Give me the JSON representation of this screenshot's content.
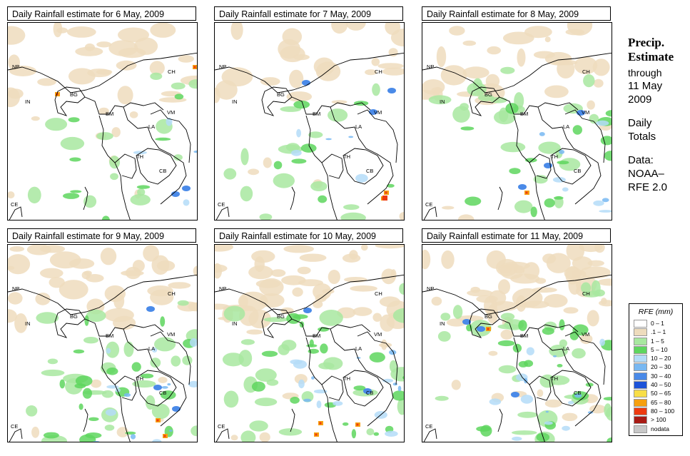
{
  "panels": [
    {
      "title": "Daily Rainfall estimate for  6 May, 2009"
    },
    {
      "title": "Daily Rainfall estimate for  7 May, 2009"
    },
    {
      "title": "Daily Rainfall estimate for  8 May, 2009"
    },
    {
      "title": "Daily Rainfall estimate for  9 May, 2009"
    },
    {
      "title": "Daily Rainfall estimate for  10 May, 2009"
    },
    {
      "title": "Daily Rainfall estimate for  11 May, 2009"
    }
  ],
  "country_labels": [
    "NP",
    "CH",
    "IN",
    "BG",
    "BM",
    "VM",
    "LA",
    "TH",
    "CB",
    "CE"
  ],
  "side": {
    "title1": "Precip.",
    "title2": "Estimate",
    "through": "through",
    "date1": "11 May",
    "date2": "2009",
    "daily1": "Daily",
    "daily2": "Totals",
    "data1": "Data:",
    "data2": "NOAA–",
    "data3": "RFE 2.0"
  },
  "legend": {
    "title": "RFE (mm)",
    "items": [
      {
        "label": "0 – 1",
        "color": "#ffffff"
      },
      {
        "label": ".1 – 1",
        "color": "#eedcbd"
      },
      {
        "label": "1 – 5",
        "color": "#a8e8a0"
      },
      {
        "label": "5 – 10",
        "color": "#5ed65e"
      },
      {
        "label": "10 – 20",
        "color": "#b4dcf8"
      },
      {
        "label": "20 – 30",
        "color": "#78b8f2"
      },
      {
        "label": "30 – 40",
        "color": "#4a8ae8"
      },
      {
        "label": "40 – 50",
        "color": "#1c52d8"
      },
      {
        "label": "50 – 65",
        "color": "#f8de48"
      },
      {
        "label": "65 – 80",
        "color": "#f6a010"
      },
      {
        "label": "80 – 100",
        "color": "#ee3a10"
      },
      {
        "label": "> 100",
        "color": "#a81a14"
      },
      {
        "label": "nodata",
        "color": "#c8c8c8"
      }
    ]
  }
}
